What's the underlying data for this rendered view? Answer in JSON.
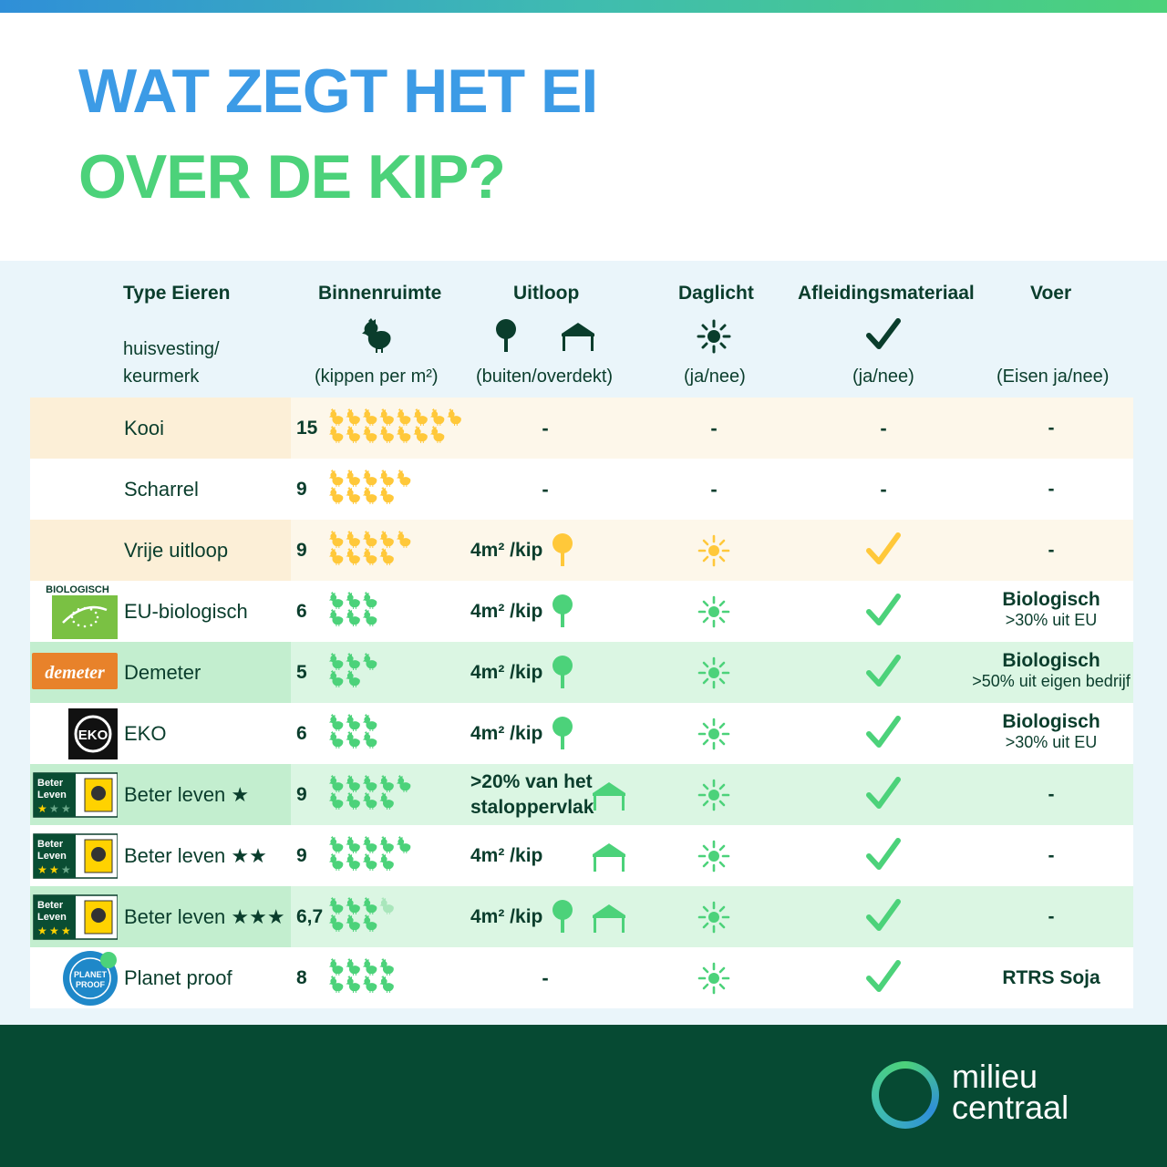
{
  "title": {
    "line1": "WAT ZEGT HET EI",
    "line2": "OVER DE KIP?"
  },
  "headers": {
    "type": "Type Eieren",
    "type_sub1": "huisvesting/",
    "type_sub2": "keurmerk",
    "binnen": "Binnenruimte",
    "binnen_sub": "(kippen per m²)",
    "uitloop": "Uitloop",
    "uitloop_sub": "(buiten/overdekt)",
    "daglicht": "Daglicht",
    "daglicht_sub": "(ja/nee)",
    "afleiding": "Afleidingsmateriaal",
    "afleiding_sub": "(ja/nee)",
    "voer": "Voer",
    "voer_sub": "(Eisen ja/nee)"
  },
  "rows": [
    {
      "name": "Kooi",
      "density": "15",
      "uitloop": "-",
      "daglicht": "-",
      "afleiding": "-",
      "voer": "-"
    },
    {
      "name": "Scharrel",
      "density": "9",
      "uitloop": "-",
      "daglicht": "-",
      "afleiding": "-",
      "voer": "-"
    },
    {
      "name": "Vrije uitloop",
      "density": "9",
      "uitloop": "4m² /kip",
      "voer": "-"
    },
    {
      "name": "EU-biologisch",
      "density": "6",
      "uitloop": "4m² /kip",
      "voer_title": "Biologisch",
      "voer_sub": ">30% uit EU",
      "logo_text": "BIOLOGISCH"
    },
    {
      "name": "Demeter",
      "density": "5",
      "uitloop": "4m² /kip",
      "voer_title": "Biologisch",
      "voer_sub": ">50% uit eigen bedrijf",
      "logo_text": "demeter"
    },
    {
      "name": "EKO",
      "density": "6",
      "uitloop": "4m² /kip",
      "voer_title": "Biologisch",
      "voer_sub": ">30% uit EU",
      "logo_text": "EKO"
    },
    {
      "name": "Beter leven ★",
      "density": "9",
      "uitloop_l1": ">20% van het",
      "uitloop_l2": "staloppervlak",
      "voer": "-",
      "logo_text": "Beter Leven"
    },
    {
      "name": "Beter leven ★★",
      "density": "9",
      "uitloop": "4m² /kip",
      "voer": "-",
      "logo_text": "Beter Leven"
    },
    {
      "name": "Beter leven ★★★",
      "density": "6,7",
      "uitloop": "4m² /kip",
      "voer": "-",
      "logo_text": "Beter Leven"
    },
    {
      "name": "Planet proof",
      "density": "8",
      "uitloop": "-",
      "voer": "RTRS Soja",
      "logo_text": "PLANET PROOF"
    }
  ],
  "brand": {
    "line1": "milieu",
    "line2": "centraal"
  },
  "colors": {
    "blue": "#3c9be6",
    "green": "#4cd27a",
    "yellow": "#ffc83a",
    "dark": "#064a33"
  }
}
